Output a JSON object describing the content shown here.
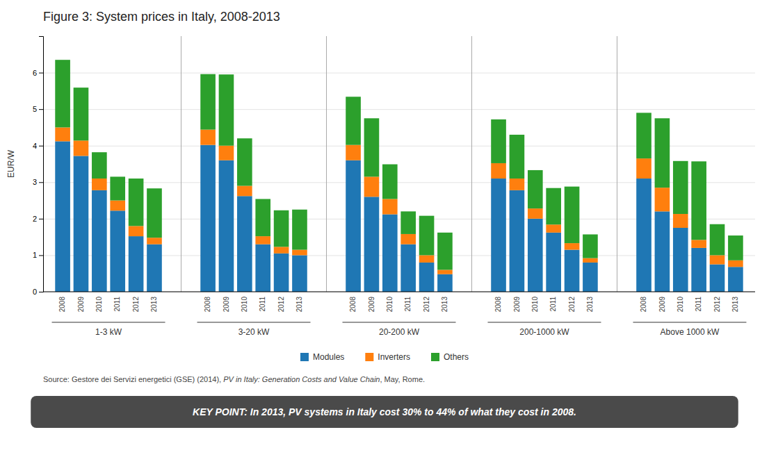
{
  "chart_data": {
    "type": "bar",
    "stacked": true,
    "title": "Figure 3: System prices in Italy, 2008-2013",
    "ylabel": "EUR/W",
    "groups": [
      {
        "label": "1-3 kW",
        "categories": [
          "2008",
          "2009",
          "2010",
          "2011",
          "2012",
          "2013"
        ]
      },
      {
        "label": "3-20 kW",
        "categories": [
          "2008",
          "2009",
          "2010",
          "2011",
          "2012",
          "2013"
        ]
      },
      {
        "label": "20-200 kW",
        "categories": [
          "2008",
          "2009",
          "2010",
          "2011",
          "2012",
          "2013"
        ]
      },
      {
        "label": "200-1000 kW",
        "categories": [
          "2008",
          "2009",
          "2010",
          "2011",
          "2012",
          "2013"
        ]
      },
      {
        "label": "Above 1000 kW",
        "categories": [
          "2008",
          "2009",
          "2010",
          "2011",
          "2012",
          "2013"
        ]
      }
    ],
    "series": [
      {
        "name": "Modules",
        "values": [
          4.12,
          3.72,
          2.78,
          2.22,
          1.52,
          1.3,
          4.02,
          3.6,
          2.62,
          1.3,
          1.05,
          1.0,
          3.6,
          2.6,
          2.12,
          1.3,
          0.8,
          0.48,
          3.1,
          2.78,
          2.0,
          1.62,
          1.15,
          0.8,
          3.1,
          2.2,
          1.75,
          1.2,
          0.75,
          0.68
        ]
      },
      {
        "name": "Inverters",
        "values": [
          0.38,
          0.42,
          0.32,
          0.28,
          0.28,
          0.18,
          0.42,
          0.4,
          0.28,
          0.22,
          0.18,
          0.15,
          0.42,
          0.55,
          0.42,
          0.28,
          0.2,
          0.12,
          0.42,
          0.32,
          0.28,
          0.22,
          0.18,
          0.12,
          0.55,
          0.65,
          0.38,
          0.22,
          0.25,
          0.18
        ]
      },
      {
        "name": "Others",
        "values": [
          1.85,
          1.45,
          0.72,
          0.65,
          1.3,
          1.35,
          1.52,
          1.95,
          1.3,
          1.02,
          1.0,
          1.1,
          1.32,
          1.6,
          0.95,
          0.62,
          1.08,
          1.02,
          1.2,
          1.2,
          1.05,
          1.0,
          1.55,
          0.65,
          1.25,
          1.9,
          1.45,
          2.15,
          0.85,
          0.68
        ]
      }
    ],
    "ylim": [
      0,
      7
    ],
    "yticks": [
      0,
      1,
      2,
      3,
      4,
      5,
      6
    ],
    "grid": true,
    "legend": "bottom",
    "source": [
      "Source: Gestore dei Servizi energetici (GSE) (2014), ",
      "PV in Italy: Generation Costs and Value Chain",
      ", May, Rome."
    ],
    "key_point": "KEY POINT: In 2013, PV systems in Italy cost 30% to 44% of what they cost in 2008."
  }
}
